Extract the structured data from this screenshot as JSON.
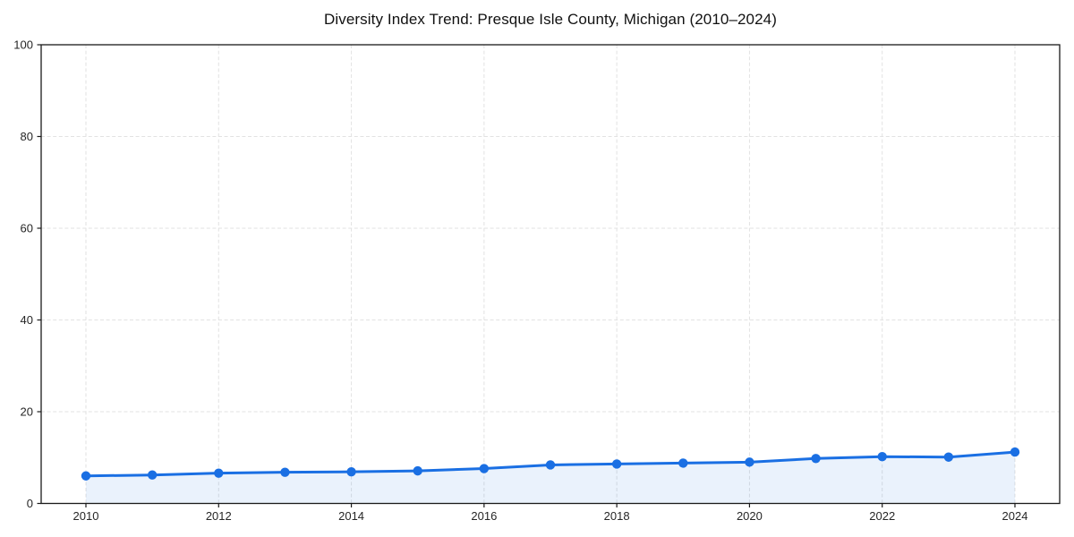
{
  "title": "Diversity Index Trend: Presque Isle County, Michigan (2010–2024)",
  "chart_data": {
    "type": "line",
    "title": "Diversity Index Trend: Presque Isle County, Michigan (2010–2024)",
    "x": [
      2010,
      2011,
      2012,
      2013,
      2014,
      2015,
      2016,
      2017,
      2018,
      2019,
      2020,
      2021,
      2022,
      2023,
      2024
    ],
    "series": [
      {
        "name": "Diversity Index",
        "values": [
          6.0,
          6.2,
          6.6,
          6.8,
          6.9,
          7.1,
          7.6,
          8.4,
          8.6,
          8.8,
          9.0,
          9.8,
          10.2,
          10.1,
          11.2
        ]
      }
    ],
    "xlabel": "",
    "ylabel": "",
    "ylim": [
      0,
      100
    ],
    "yticks": [
      0,
      20,
      40,
      60,
      80,
      100
    ],
    "xticks": [
      2010,
      2012,
      2014,
      2016,
      2018,
      2020,
      2022,
      2024
    ],
    "grid": true,
    "grid_style": "dashed",
    "legend_position": "none",
    "marker": "circle",
    "colors": {
      "line": "#1a6fe3",
      "marker": "#1a6fe3",
      "area_fill": "rgba(26, 111, 227, 0.09)",
      "grid": "#e2e2e2",
      "frame": "#1a1a1a",
      "tick_label": "#262626",
      "title": "#111111",
      "background": "#ffffff"
    }
  }
}
